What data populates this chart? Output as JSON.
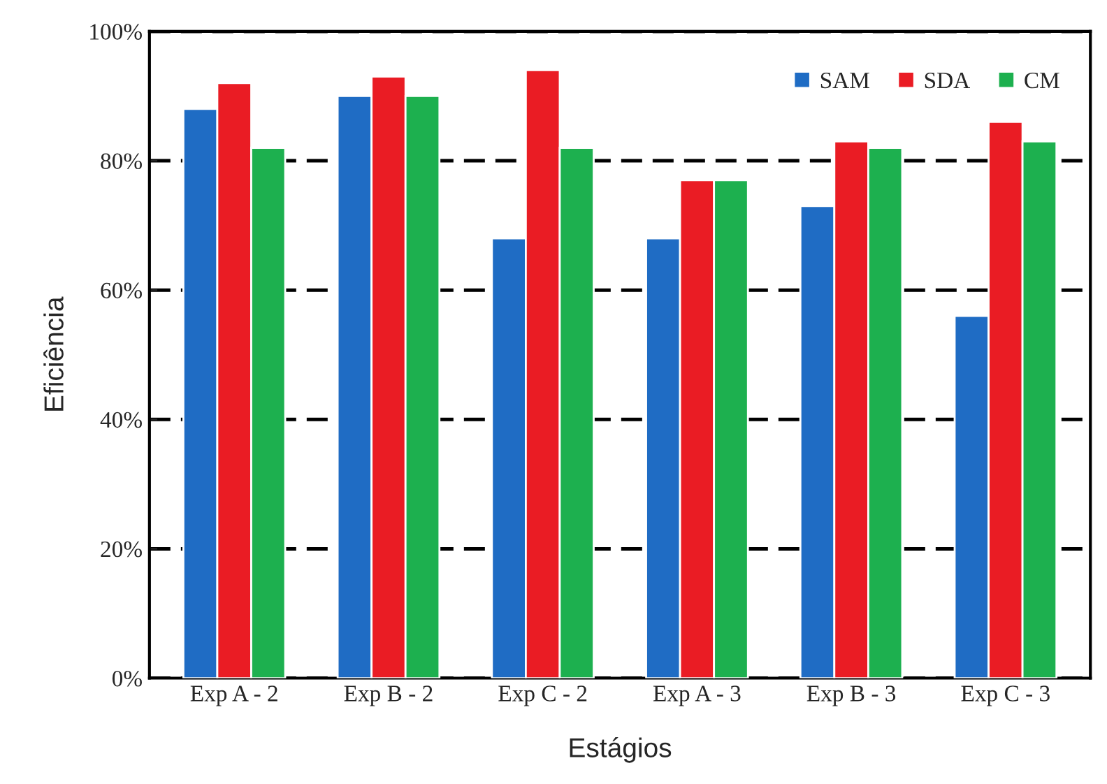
{
  "chart_data": {
    "type": "bar",
    "xlabel": "Estágios",
    "ylabel": "Eficiência",
    "categories": [
      "Exp A - 2",
      "Exp B - 2",
      "Exp C - 2",
      "Exp A - 3",
      "Exp B - 3",
      "Exp C - 3"
    ],
    "series": [
      {
        "name": "SAM",
        "color": "#1f6cc4",
        "values": [
          88,
          90,
          68,
          68,
          73,
          56
        ]
      },
      {
        "name": "SDA",
        "color": "#ea1c24",
        "values": [
          92,
          93,
          94,
          77,
          83,
          86
        ]
      },
      {
        "name": "CM",
        "color": "#1db04f",
        "values": [
          82,
          90,
          82,
          77,
          82,
          83
        ]
      }
    ],
    "ylim": [
      0,
      100
    ],
    "yticks": [
      {
        "value": 0,
        "label": "0%"
      },
      {
        "value": 20,
        "label": "20%"
      },
      {
        "value": 40,
        "label": "40%"
      },
      {
        "value": 60,
        "label": "60%"
      },
      {
        "value": 80,
        "label": "80%"
      },
      {
        "value": 100,
        "label": "100%"
      }
    ],
    "grid": "y",
    "line_style": "dashed",
    "legend": "top right"
  }
}
